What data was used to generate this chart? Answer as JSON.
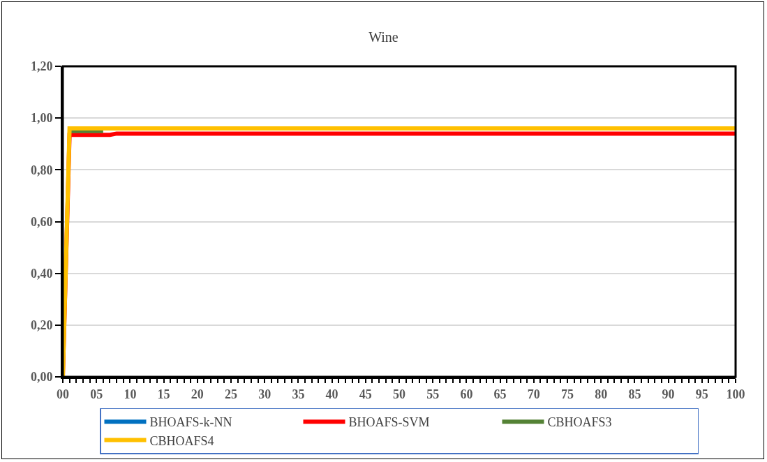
{
  "chart_data": {
    "type": "line",
    "title": "Wine",
    "series": [
      {
        "name": "BHOAFS-k-NN",
        "color": "#0070c0",
        "values": [
          null
        ]
      },
      {
        "name": "BHOAFS-SVM",
        "color": "#ff0000",
        "x": [
          0,
          1,
          7,
          8,
          100
        ],
        "values": [
          0,
          0.935,
          0.935,
          0.94,
          0.94
        ]
      },
      {
        "name": "CBHOAFS3",
        "color": "#548235",
        "x": [
          1,
          6
        ],
        "values": [
          0.95,
          0.95
        ]
      },
      {
        "name": "CBHOAFS4",
        "color": "#ffc000",
        "x": [
          0,
          1,
          100
        ],
        "values": [
          0,
          0.96,
          0.96
        ]
      }
    ],
    "xlim": [
      0,
      100
    ],
    "xticks": [
      {
        "value": 0,
        "label": "00"
      },
      {
        "value": 5,
        "label": "05"
      },
      10,
      15,
      20,
      25,
      30,
      35,
      40,
      45,
      50,
      55,
      60,
      65,
      70,
      75,
      80,
      85,
      90,
      95,
      100
    ],
    "ylim": [
      0,
      1.2
    ],
    "yticks": [
      {
        "value": 0,
        "label": "0,00"
      },
      {
        "value": 0.2,
        "label": "0,20"
      },
      {
        "value": 0.4,
        "label": "0,40"
      },
      {
        "value": 0.6,
        "label": "0,60"
      },
      {
        "value": 0.8,
        "label": "0,80"
      },
      {
        "value": 1.0,
        "label": "1,00"
      },
      {
        "value": 1.2,
        "label": "1,20"
      }
    ],
    "grid": "y",
    "legend": "bottom",
    "marker": "none",
    "line_style": "solid"
  }
}
